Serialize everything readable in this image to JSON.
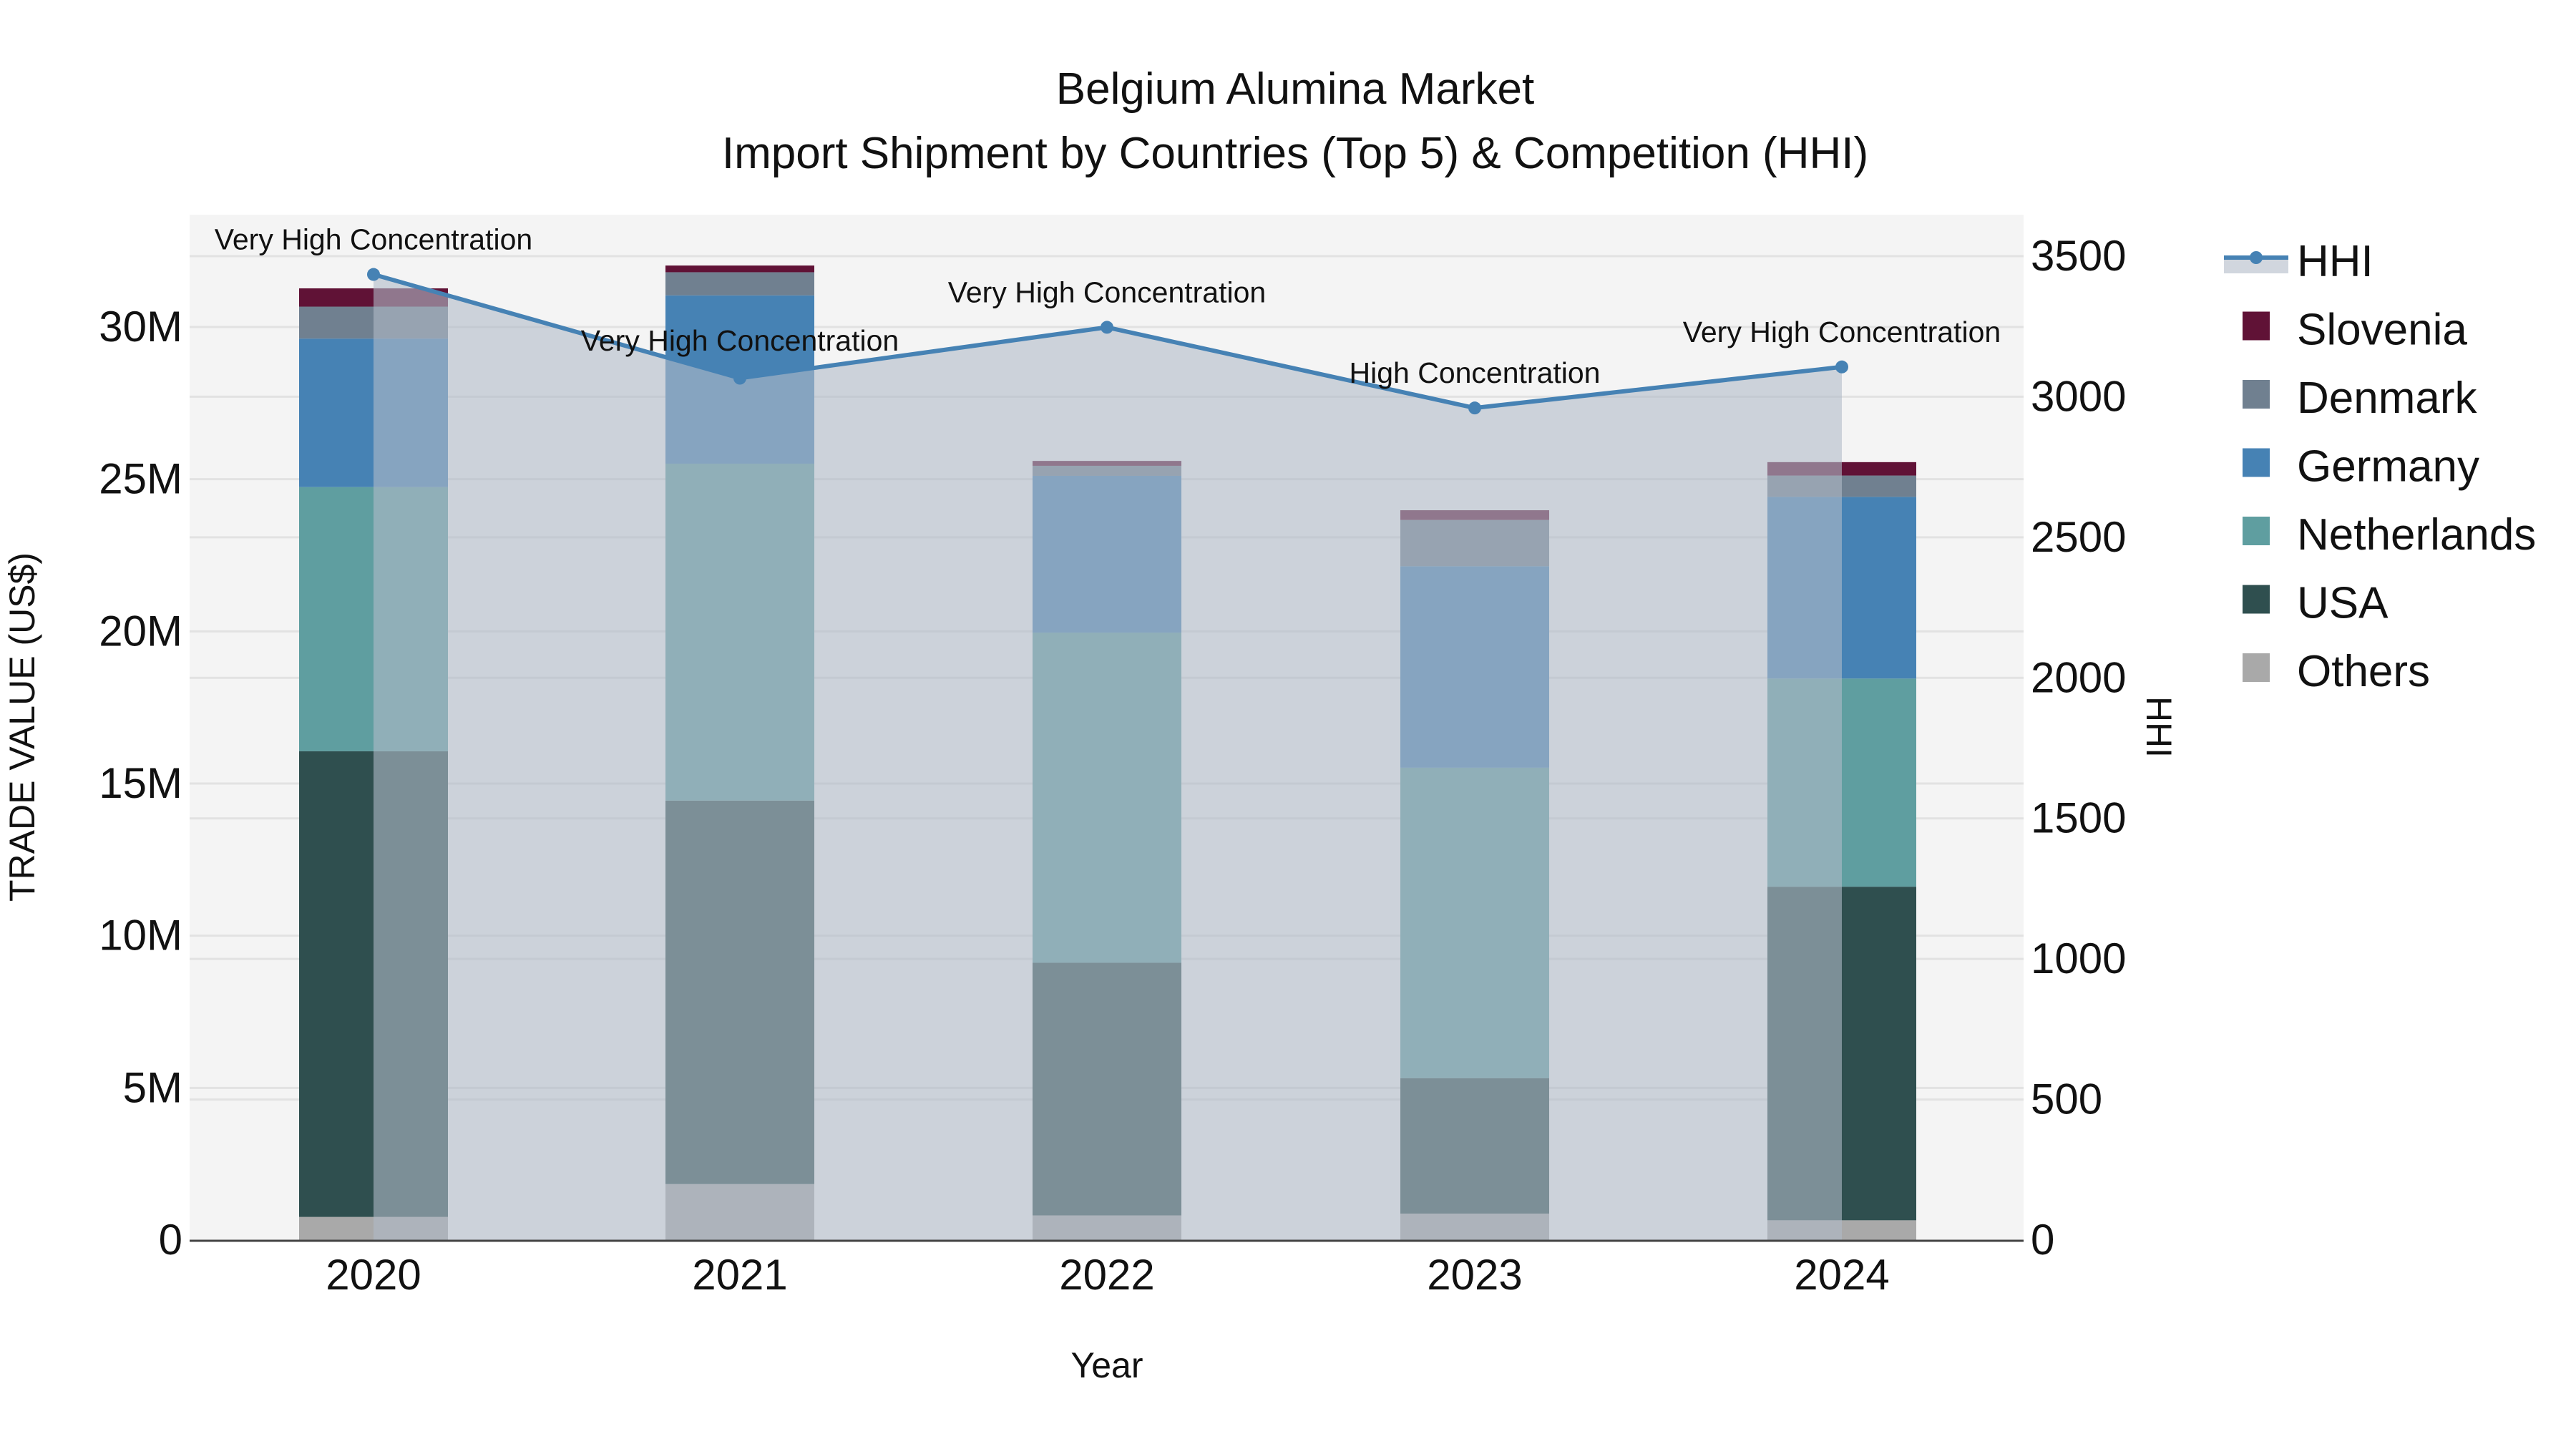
{
  "title": {
    "line1": "Belgium Alumina Market",
    "line2": "Import Shipment by Countries (Top 5) & Competition (HHI)"
  },
  "axes": {
    "x_label": "Year",
    "y_left_label": "TRADE VALUE (US$)",
    "y_right_label": "HHI",
    "y_left_ticks": [
      "0",
      "5M",
      "10M",
      "15M",
      "20M",
      "25M",
      "30M"
    ],
    "y_right_ticks": [
      "0",
      "500",
      "1000",
      "1500",
      "2000",
      "2500",
      "3000",
      "3500"
    ]
  },
  "legend": [
    {
      "name": "HHI",
      "type": "line",
      "color": "#4682B4"
    },
    {
      "name": "Slovenia",
      "type": "bar",
      "color": "#601236"
    },
    {
      "name": "Denmark",
      "type": "bar",
      "color": "#708090"
    },
    {
      "name": "Germany",
      "type": "bar",
      "color": "#4682B4"
    },
    {
      "name": "Netherlands",
      "type": "bar",
      "color": "#5F9EA0"
    },
    {
      "name": "USA",
      "type": "bar",
      "color": "#2F4F4F"
    },
    {
      "name": "Others",
      "type": "bar",
      "color": "#A9A9A9"
    }
  ],
  "annotations": [
    "Very High Concentration",
    "Very High Concentration",
    "Very High Concentration",
    "High Concentration",
    "Very High Concentration"
  ],
  "chart_data": {
    "type": "bar",
    "stacked": true,
    "title": "Belgium Alumina Market - Import Shipment by Countries (Top 5) & Competition (HHI)",
    "xlabel": "Year",
    "ylabel": "TRADE VALUE (US$)",
    "y2label": "HHI",
    "categories": [
      "2020",
      "2021",
      "2022",
      "2023",
      "2024"
    ],
    "ylim": [
      0,
      32500000
    ],
    "y2lim": [
      0,
      3630
    ],
    "grid": true,
    "legend_position": "right",
    "series": [
      {
        "name": "Others",
        "color": "#A9A9A9",
        "values": [
          760000,
          1840000,
          810000,
          870000,
          650000
        ]
      },
      {
        "name": "USA",
        "color": "#2F4F4F",
        "values": [
          15300000,
          12600000,
          8300000,
          4450000,
          10960000
        ]
      },
      {
        "name": "Netherlands",
        "color": "#5F9EA0",
        "values": [
          8680000,
          11070000,
          10850000,
          10200000,
          6840000
        ]
      },
      {
        "name": "Germany",
        "color": "#4682B4",
        "values": [
          4880000,
          5530000,
          5150000,
          6620000,
          5970000
        ]
      },
      {
        "name": "Denmark",
        "color": "#708090",
        "values": [
          1050000,
          760000,
          330000,
          1520000,
          700000
        ]
      },
      {
        "name": "Slovenia",
        "color": "#601236",
        "values": [
          600000,
          220000,
          160000,
          320000,
          440000
        ]
      }
    ],
    "line_series": {
      "name": "HHI",
      "axis": "right",
      "color": "#4682B4",
      "fill": "tozeroy",
      "values": [
        3435,
        3066,
        3247,
        2960,
        3106
      ],
      "labels": [
        "Very High Concentration",
        "Very High Concentration",
        "Very High Concentration",
        "High Concentration",
        "Very High Concentration"
      ]
    }
  }
}
